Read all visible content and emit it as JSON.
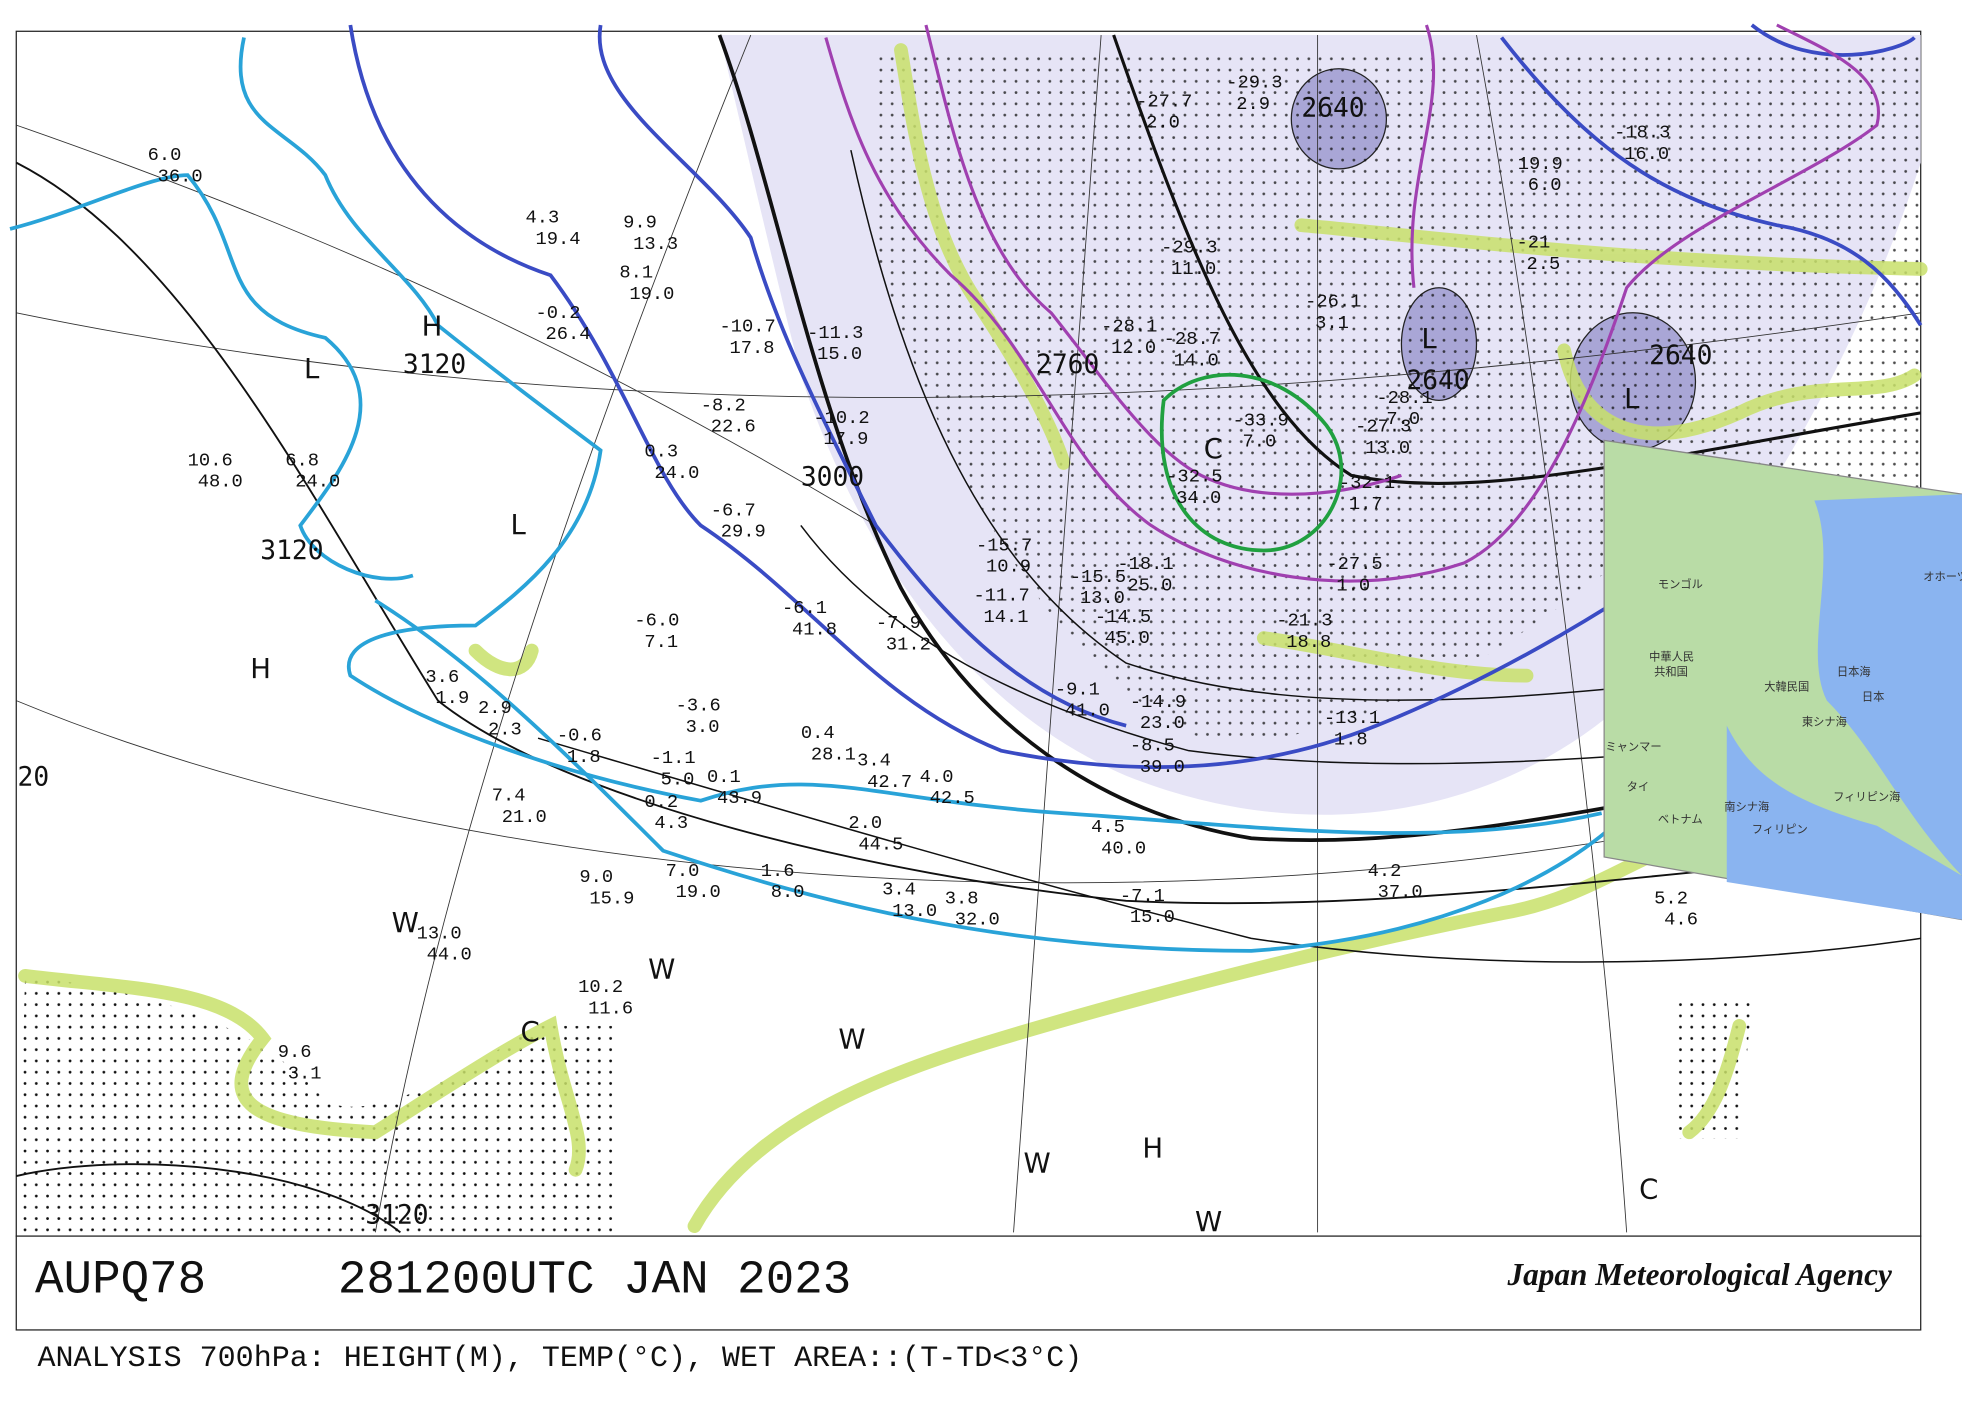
{
  "header": {
    "code": "AUPQ78",
    "time": "281200UTC JAN 2023",
    "agency": "Japan Meteorological Agency"
  },
  "footer": "ANALYSIS 700hPa: HEIGHT(M), TEMP(°C), WET AREA::(T-TD<3°C)",
  "contour_labels": [
    "3000",
    "3120",
    "3120",
    "3120",
    "2760",
    "2640",
    "2640",
    "2640",
    "20"
  ],
  "centers": [
    "H",
    "L",
    "L",
    "H",
    "W",
    "W",
    "C",
    "W",
    "H",
    "W",
    "W",
    "C",
    "C",
    "L",
    "L"
  ],
  "stations": [
    [
      "6.0",
      "36.0"
    ],
    [
      "10.6",
      "48.0"
    ],
    [
      "6.8",
      "24.0"
    ],
    [
      "4.3",
      "19.4"
    ],
    [
      "-0.2",
      "26.4"
    ],
    [
      "9.9",
      "13.3"
    ],
    [
      "8.1",
      "19.0"
    ],
    [
      "-10.7",
      "17.8"
    ],
    [
      "-8.2",
      "22.6"
    ],
    [
      "0.3",
      "24.0"
    ],
    [
      "-6.7",
      "29.9"
    ],
    [
      "-11.3",
      "15.0"
    ],
    [
      "-10.2",
      "17.9"
    ],
    [
      "-6.1",
      "41.8"
    ],
    [
      "-7.9",
      "31.2"
    ],
    [
      "-6.0",
      "7.1"
    ],
    [
      "-3.6",
      "3.0"
    ],
    [
      "-1.1",
      "5.0"
    ],
    [
      "0.1",
      "43.9"
    ],
    [
      "0.2",
      "4.3"
    ],
    [
      "3.6",
      "1.9"
    ],
    [
      "2.9",
      "2.3"
    ],
    [
      "-0.6",
      "1.8"
    ],
    [
      "7.4",
      "21.0"
    ],
    [
      "9.0",
      "15.9"
    ],
    [
      "7.0",
      "19.0"
    ],
    [
      "1.6",
      "8.0"
    ],
    [
      "0.4",
      "28.1"
    ],
    [
      "3.4",
      "42.7"
    ],
    [
      "4.0",
      "42.5"
    ],
    [
      "2.0",
      "44.5"
    ],
    [
      "3.4",
      "13.0"
    ],
    [
      "3.8",
      "32.0"
    ],
    [
      "13.0",
      "44.0"
    ],
    [
      "10.2",
      "11.6"
    ],
    [
      "9.6",
      "3.1"
    ],
    [
      "4.5",
      "40.0"
    ],
    [
      "-7.1",
      "15.0"
    ],
    [
      "4.2",
      "37.0"
    ],
    [
      "5.2",
      "4.6"
    ],
    [
      "-9.1",
      "41.0"
    ],
    [
      "-14.9",
      "23.0"
    ],
    [
      "-8.5",
      "39.0"
    ],
    [
      "-13.1",
      "1.8"
    ],
    [
      "-15.5",
      "13.0"
    ],
    [
      "-14.5",
      "45.0"
    ],
    [
      "-15.7",
      "10.9"
    ],
    [
      "-11.7",
      "14.1"
    ],
    [
      "-27.5",
      "1.0"
    ],
    [
      "-21.3",
      "18.8"
    ],
    [
      "-33.9",
      "7.0"
    ],
    [
      "-32.5",
      "34.0"
    ],
    [
      "-28.1",
      "12.0"
    ],
    [
      "-28.7",
      "14.0"
    ],
    [
      "-29.3",
      "11.0"
    ],
    [
      "-27.7",
      "2.0"
    ],
    [
      "-29.3",
      "2.9"
    ],
    [
      "-26.1",
      "3.1"
    ],
    [
      "-27.3",
      "13.0"
    ],
    [
      "-32.1",
      "1.7"
    ],
    [
      "-28.1",
      "7.0"
    ],
    [
      "-21",
      "2.5"
    ],
    [
      "19.9",
      "6.0"
    ],
    [
      "-18.3",
      "16.0"
    ],
    [
      "-18.1",
      "25.0"
    ]
  ],
  "inset_labels": [
    "モンゴル",
    "中華人民",
    "共和国",
    "大韓民国",
    "日本海",
    "日本",
    "東シナ海",
    "南シナ海",
    "フィリピン海",
    "フィリピン",
    "ベトナム",
    "タイ",
    "ミャンマー",
    "オホーツ"
  ]
}
